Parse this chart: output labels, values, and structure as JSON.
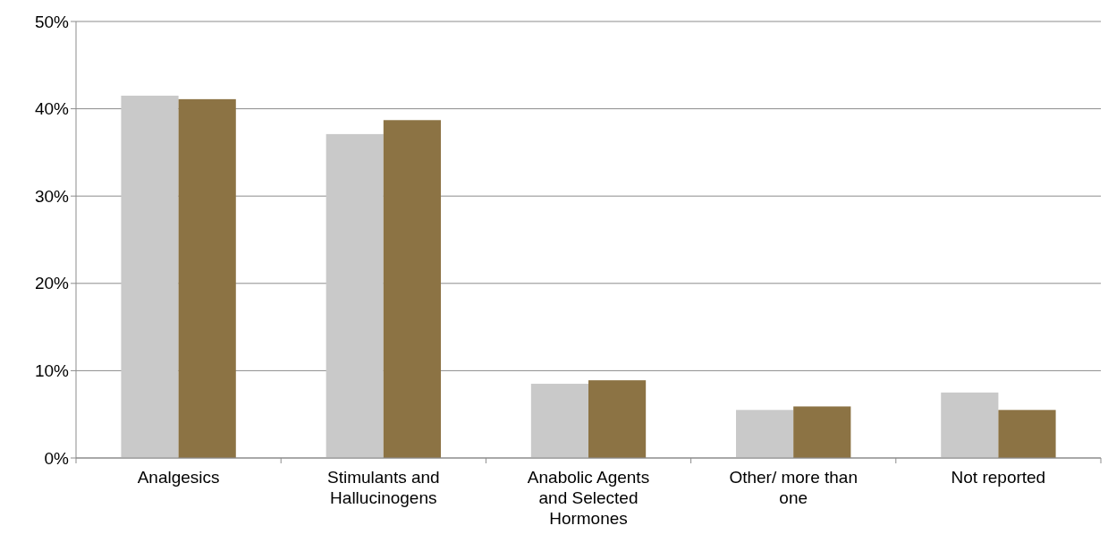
{
  "chart_data": {
    "type": "bar",
    "categories": [
      "Analgesics",
      "Stimulants and Hallucinogens",
      "Anabolic Agents and Selected Hormones",
      "Other/ more than one",
      "Not reported"
    ],
    "series": [
      {
        "color": "#c9c9c9",
        "values": [
          41.5,
          37.1,
          8.5,
          5.5,
          7.5
        ]
      },
      {
        "color": "#8c7344",
        "values": [
          41.1,
          38.7,
          8.9,
          5.9,
          5.5
        ]
      }
    ],
    "ylim": [
      0,
      50
    ],
    "yticks": [
      {
        "value": 0,
        "label": "0%"
      },
      {
        "value": 10,
        "label": "10%"
      },
      {
        "value": 20,
        "label": "20%"
      },
      {
        "value": 30,
        "label": "30%"
      },
      {
        "value": 40,
        "label": "40%"
      },
      {
        "value": 50,
        "label": "50%"
      }
    ],
    "grid": "y"
  }
}
